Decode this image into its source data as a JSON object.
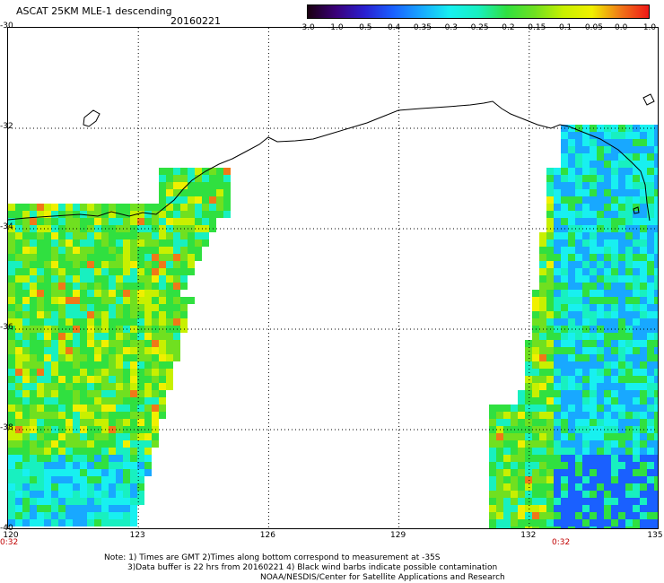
{
  "header": {
    "title": "ASCAT 25KM MLE-1 descending",
    "date": "20160221"
  },
  "colorbar": {
    "labels": [
      "-3.0",
      "-1.0",
      "-0.5",
      "-0.4",
      "-0.35",
      "-0.3",
      "-0.25",
      "-0.2",
      "-0.15",
      "-0.1",
      "-0.05",
      "0.0",
      "1.0"
    ],
    "colors": [
      "#1a0010",
      "#3a007a",
      "#2a20d0",
      "#1a60ff",
      "#18a8ff",
      "#18f0f0",
      "#18f0c0",
      "#30e040",
      "#70e020",
      "#c8f000",
      "#f0f000",
      "#f07818",
      "#f01818"
    ]
  },
  "map": {
    "lat_labels": [
      "-30",
      "-32",
      "-34",
      "-36",
      "-38",
      "-40"
    ],
    "lon_labels": [
      "120",
      "123",
      "126",
      "129",
      "132",
      "135"
    ],
    "time_labels": [
      "0:32",
      "0:32"
    ]
  },
  "notes": {
    "line1": "Note: 1) Times are GMT 2)Times along bottom correspond to measurement at -35S",
    "line2": "3)Data buffer is 22 hrs from 20160221 4) Black wind barbs indicate possible contamination",
    "line3": "NOAA/NESDIS/Center for Satellite Applications and Research"
  }
}
